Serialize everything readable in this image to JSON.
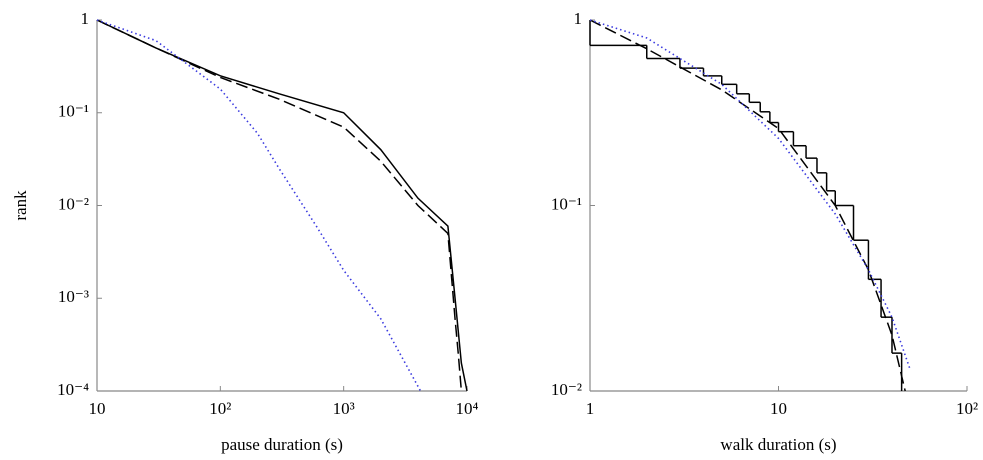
{
  "chart_data": [
    {
      "type": "line",
      "xlabel": "pause duration (s)",
      "ylabel": "rank",
      "xlog": true,
      "ylog": true,
      "xlim": [
        10,
        10000
      ],
      "ylim": [
        0.0001,
        1
      ],
      "xticks": [
        10,
        {
          "value": 100,
          "label": "10²"
        },
        {
          "value": 1000,
          "label": "10³"
        },
        {
          "value": 10000,
          "label": "10⁴"
        }
      ],
      "yticks": [
        1,
        {
          "value": 0.1,
          "label": "10⁻¹"
        },
        {
          "value": 0.01,
          "label": "10⁻²"
        },
        {
          "value": 0.001,
          "label": "10⁻³"
        },
        {
          "value": 0.0001,
          "label": "10⁻⁴"
        }
      ],
      "series": [
        {
          "color": "#000000",
          "dash": "solid",
          "x": [
            10,
            30,
            100,
            300,
            1000,
            2000,
            4000,
            7000,
            8000,
            9000,
            10000
          ],
          "values": [
            1,
            0.5,
            0.25,
            0.16,
            0.1,
            0.04,
            0.012,
            0.006,
            0.001,
            0.0002,
            0.0001
          ]
        },
        {
          "color": "#000000",
          "dash": "dashed",
          "x": [
            10,
            30,
            100,
            300,
            1000,
            2000,
            4000,
            7000,
            8000,
            8500,
            9000
          ],
          "values": [
            1,
            0.5,
            0.24,
            0.14,
            0.07,
            0.03,
            0.01,
            0.005,
            0.0006,
            0.00025,
            0.0001
          ]
        },
        {
          "color": "#3a3adf",
          "dash": "dotted",
          "x": [
            10,
            30,
            100,
            200,
            300,
            600,
            1000,
            2000,
            4200
          ],
          "values": [
            1,
            0.6,
            0.18,
            0.06,
            0.025,
            0.006,
            0.002,
            0.0006,
            0.0001
          ]
        }
      ]
    },
    {
      "type": "line",
      "xlabel": "walk duration (s)",
      "xlog": true,
      "ylog": true,
      "xlim": [
        1,
        100
      ],
      "ylim": [
        0.01,
        1
      ],
      "xticks": [
        1,
        10,
        {
          "value": 100,
          "label": "10²"
        }
      ],
      "yticks": [
        1,
        {
          "value": 0.1,
          "label": "10⁻¹"
        },
        {
          "value": 0.01,
          "label": "10⁻²"
        }
      ],
      "series": [
        {
          "color": "#000000",
          "dash": "solid",
          "step": true,
          "x": [
            1,
            2,
            3,
            4,
            5,
            6,
            7,
            8,
            9,
            10,
            12,
            14,
            16,
            18,
            20,
            25,
            30,
            35,
            40,
            45
          ],
          "values": [
            0.73,
            0.62,
            0.55,
            0.5,
            0.45,
            0.4,
            0.36,
            0.32,
            0.28,
            0.25,
            0.21,
            0.18,
            0.15,
            0.12,
            0.1,
            0.065,
            0.04,
            0.025,
            0.016,
            0.01
          ]
        },
        {
          "color": "#000000",
          "dash": "dashed",
          "x": [
            1,
            2,
            5,
            10,
            20,
            30,
            40,
            47
          ],
          "values": [
            1,
            0.7,
            0.42,
            0.26,
            0.1,
            0.045,
            0.02,
            0.01
          ]
        },
        {
          "color": "#3a3adf",
          "dash": "dotted",
          "x": [
            1,
            2,
            5,
            10,
            20,
            30,
            40,
            50
          ],
          "values": [
            1,
            0.8,
            0.45,
            0.23,
            0.09,
            0.045,
            0.025,
            0.013
          ]
        }
      ]
    }
  ]
}
